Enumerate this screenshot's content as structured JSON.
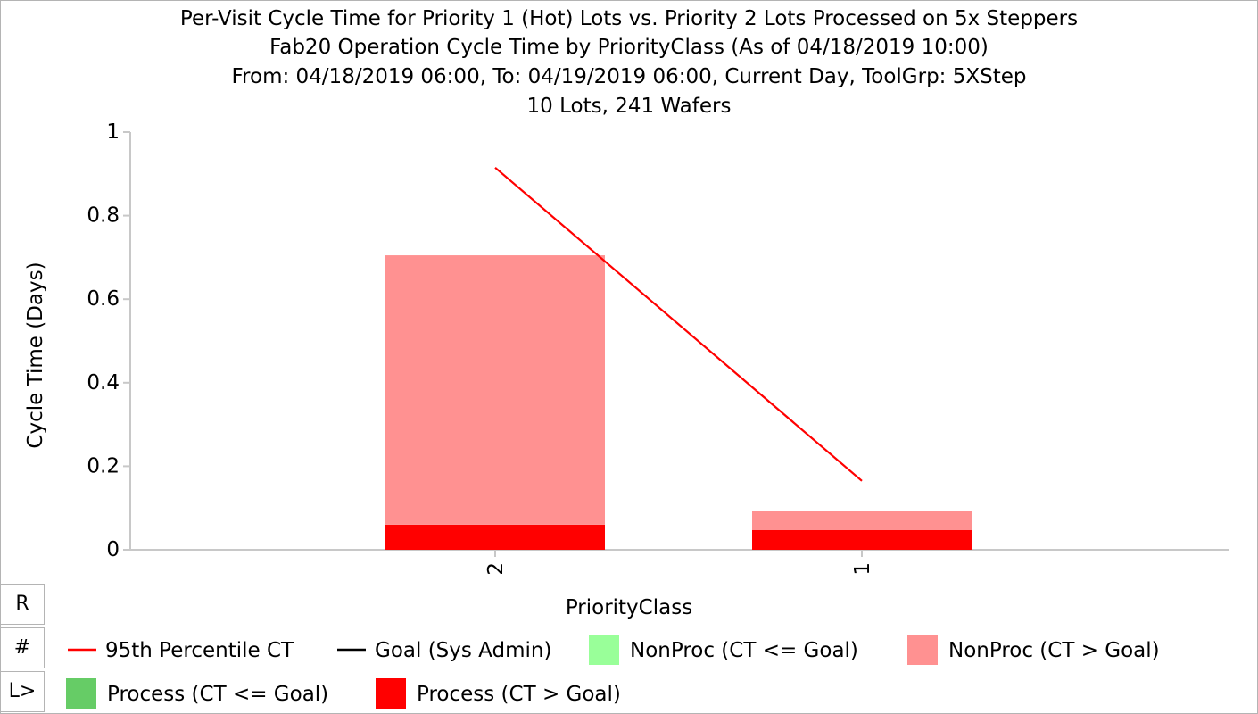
{
  "controls": {
    "r_label": "R",
    "hash_label": "#",
    "l_label": "L>"
  },
  "colors": {
    "nonproc_ok": "#99ff99",
    "nonproc_over": "#ff9191",
    "process_ok": "#66cc66",
    "process_over": "#ff0000",
    "p95_line": "#ff0000",
    "goal_line": "#000000"
  },
  "chart_data": {
    "type": "bar",
    "stacked": true,
    "title_lines": [
      "Per-Visit Cycle Time for Priority 1 (Hot) Lots vs. Priority 2 Lots Processed on 5x Steppers",
      "Fab20 Operation Cycle Time by PriorityClass  (As of 04/18/2019 10:00)",
      "From: 04/18/2019 06:00, To: 04/19/2019 06:00, Current Day, ToolGrp: 5XStep",
      "10 Lots, 241 Wafers"
    ],
    "xlabel": "PriorityClass",
    "ylabel": "Cycle Time (Days)",
    "ylim": [
      0,
      1
    ],
    "yticks": [
      0,
      0.2,
      0.4,
      0.6,
      0.8,
      1
    ],
    "ytick_labels": [
      "0",
      "0.2",
      "0.4",
      "0.6",
      "0.8",
      "1"
    ],
    "categories": [
      "2",
      "1"
    ],
    "series": [
      {
        "name": "Process (CT <= Goal)",
        "color": "#66cc66",
        "values": [
          0,
          0
        ]
      },
      {
        "name": "Process (CT > Goal)",
        "color": "#ff0000",
        "values": [
          0.06,
          0.047
        ]
      },
      {
        "name": "NonProc (CT <= Goal)",
        "color": "#99ff99",
        "values": [
          0,
          0
        ]
      },
      {
        "name": "NonProc (CT > Goal)",
        "color": "#ff9191",
        "values": [
          0.645,
          0.047
        ]
      }
    ],
    "lines": [
      {
        "name": "95th Percentile CT",
        "color": "#ff0000",
        "values": [
          0.915,
          0.165
        ]
      },
      {
        "name": "Goal (Sys Admin)",
        "color": "#000000",
        "values": []
      }
    ],
    "legend": {
      "placement": "bottom",
      "items": [
        {
          "label": "95th Percentile CT",
          "kind": "line",
          "color": "#ff0000"
        },
        {
          "label": "Goal (Sys Admin)",
          "kind": "line",
          "color": "#000000"
        },
        {
          "label": "NonProc (CT <= Goal)",
          "kind": "box",
          "color": "#99ff99"
        },
        {
          "label": "NonProc (CT > Goal)",
          "kind": "box",
          "color": "#ff9191"
        },
        {
          "label": "Process (CT <= Goal)",
          "kind": "box",
          "color": "#66cc66"
        },
        {
          "label": "Process (CT > Goal)",
          "kind": "box",
          "color": "#ff0000"
        }
      ]
    },
    "grid": false
  }
}
